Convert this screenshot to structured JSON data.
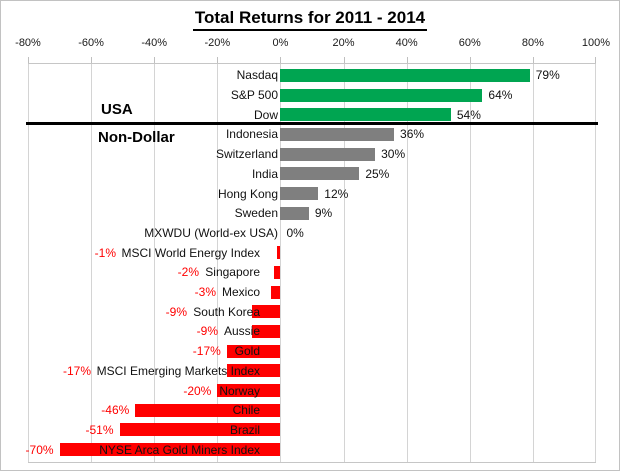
{
  "title": "Total Returns for 2011 - 2014",
  "group_labels": {
    "usa": "USA",
    "non_dollar": "Non-Dollar"
  },
  "colors": {
    "usa_positive": "#00a551",
    "non_dollar_positive": "#7f7f7f",
    "negative": "#ff0000",
    "negative_value_text": "#ff0000",
    "positive_value_text": "#111111"
  },
  "chart_data": {
    "type": "bar",
    "orientation": "horizontal",
    "title": "Total Returns for 2011 - 2014",
    "axis": {
      "position": "top",
      "min": -80,
      "max": 100,
      "tick_step": 20,
      "tick_labels": [
        "-80%",
        "-60%",
        "-40%",
        "-20%",
        "0%",
        "20%",
        "40%",
        "60%",
        "80%",
        "100%"
      ],
      "grid": true
    },
    "legend": "none",
    "rows": [
      {
        "category": "Nasdaq",
        "value": 79,
        "value_label": "79%",
        "group": "USA",
        "color_key": "green"
      },
      {
        "category": "S&P 500",
        "value": 64,
        "value_label": "64%",
        "group": "USA",
        "color_key": "green"
      },
      {
        "category": "Dow",
        "value": 54,
        "value_label": "54%",
        "group": "USA",
        "color_key": "green"
      },
      {
        "category": "Indonesia",
        "value": 36,
        "value_label": "36%",
        "group": "Non-Dollar",
        "color_key": "gray"
      },
      {
        "category": "Switzerland",
        "value": 30,
        "value_label": "30%",
        "group": "Non-Dollar",
        "color_key": "gray"
      },
      {
        "category": "India",
        "value": 25,
        "value_label": "25%",
        "group": "Non-Dollar",
        "color_key": "gray"
      },
      {
        "category": "Hong Kong",
        "value": 12,
        "value_label": "12%",
        "group": "Non-Dollar",
        "color_key": "gray"
      },
      {
        "category": "Sweden",
        "value": 9,
        "value_label": "9%",
        "group": "Non-Dollar",
        "color_key": "gray"
      },
      {
        "category": "MXWDU (World-ex USA)",
        "value": 0,
        "value_label": "0%",
        "group": "Non-Dollar",
        "color_key": "gray"
      },
      {
        "category": "MSCI World Energy Index",
        "value": -1,
        "value_label": "-1%",
        "group": "Non-Dollar",
        "color_key": "red"
      },
      {
        "category": "Singapore",
        "value": -2,
        "value_label": "-2%",
        "group": "Non-Dollar",
        "color_key": "red"
      },
      {
        "category": "Mexico",
        "value": -3,
        "value_label": "-3%",
        "group": "Non-Dollar",
        "color_key": "red"
      },
      {
        "category": "South Korea",
        "value": -9,
        "value_label": "-9%",
        "group": "Non-Dollar",
        "color_key": "red"
      },
      {
        "category": "Aussie",
        "value": -9,
        "value_label": "-9%",
        "group": "Non-Dollar",
        "color_key": "red"
      },
      {
        "category": "Gold",
        "value": -17,
        "value_label": "-17%",
        "group": "Non-Dollar",
        "color_key": "red"
      },
      {
        "category": "MSCI Emerging Markets Index",
        "value": -17,
        "value_label": "-17%",
        "group": "Non-Dollar",
        "color_key": "red"
      },
      {
        "category": "Norway",
        "value": -20,
        "value_label": "-20%",
        "group": "Non-Dollar",
        "color_key": "red"
      },
      {
        "category": "Chile",
        "value": -46,
        "value_label": "-46%",
        "group": "Non-Dollar",
        "color_key": "red"
      },
      {
        "category": "Brazil",
        "value": -51,
        "value_label": "-51%",
        "group": "Non-Dollar",
        "color_key": "red"
      },
      {
        "category": "NYSE Arca Gold Miners Index",
        "value": -70,
        "value_label": "-70%",
        "group": "Non-Dollar",
        "color_key": "red"
      }
    ]
  }
}
